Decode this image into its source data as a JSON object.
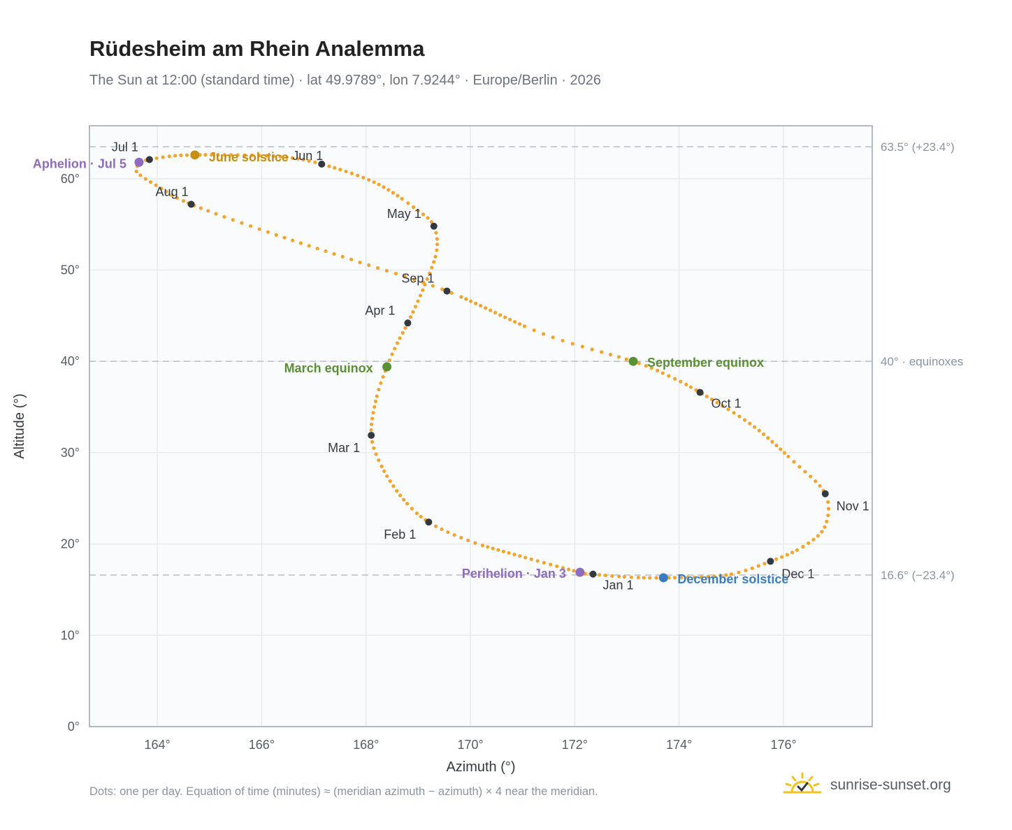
{
  "title": "Rüdesheim am Rhein Analemma",
  "subtitle": "The Sun at 12:00 (standard time) · lat 49.9789°, lon 7.9244° · Europe/Berlin · 2026",
  "footnote": "Dots: one per day. Equation of time (minutes) ≈ (meridian azimuth − azimuth) × 4 near the meridian.",
  "brand": {
    "name": "sunrise-sunset.org",
    "logo_icon": "sun-check-icon"
  },
  "colors": {
    "path": "#f2a52a",
    "month_dot": "#333940",
    "aphelion": "#8e6bbf",
    "solstice_june": "#c98d10",
    "equinox": "#5a8f32",
    "solstice_december": "#3a7dc2",
    "plot_bg": "#f9fbfd",
    "grid": "#e6ebf0",
    "reference": "#b9c3cf",
    "axis_frame": "#9aa4b1",
    "brand_sun": "#f2c21b"
  },
  "chart_data": {
    "type": "scatter",
    "xlabel": "Azimuth (°)",
    "ylabel": "Altitude (°)",
    "xlim": [
      162.7,
      177.7
    ],
    "ylim": [
      0,
      65.8
    ],
    "xticks": [
      {
        "value": 164,
        "label": "164°"
      },
      {
        "value": 166,
        "label": "166°"
      },
      {
        "value": 168,
        "label": "168°"
      },
      {
        "value": 170,
        "label": "170°"
      },
      {
        "value": 172,
        "label": "172°"
      },
      {
        "value": 174,
        "label": "174°"
      },
      {
        "value": 176,
        "label": "176°"
      }
    ],
    "yticks": [
      {
        "value": 0,
        "label": "0°"
      },
      {
        "value": 10,
        "label": "10°"
      },
      {
        "value": 20,
        "label": "20°"
      },
      {
        "value": 30,
        "label": "30°"
      },
      {
        "value": 40,
        "label": "40°"
      },
      {
        "value": 50,
        "label": "50°"
      },
      {
        "value": 60,
        "label": "60°"
      }
    ],
    "grid": true,
    "reference_lines": [
      {
        "y": 63.5,
        "label": "63.5° (+23.4°)"
      },
      {
        "y": 40.0,
        "label": "40° · equinoxes"
      },
      {
        "y": 16.6,
        "label": "16.6° (−23.4°)"
      }
    ],
    "series": [
      {
        "points": [
          [
            172.35,
            16.7
          ],
          [
            172.95,
            16.4
          ],
          [
            173.7,
            16.3
          ],
          [
            174.9,
            16.6
          ],
          [
            175.75,
            18.1
          ],
          [
            176.4,
            19.8
          ],
          [
            176.8,
            22.0
          ],
          [
            176.8,
            25.5
          ],
          [
            176.2,
            29.0
          ],
          [
            175.4,
            33.0
          ],
          [
            174.4,
            36.6
          ],
          [
            173.8,
            38.4
          ],
          [
            173.12,
            40.0
          ],
          [
            171.4,
            43.0
          ],
          [
            169.55,
            47.7
          ],
          [
            167.8,
            51.0
          ],
          [
            166.2,
            54.0
          ],
          [
            164.65,
            57.2
          ],
          [
            164.0,
            59.2
          ],
          [
            163.6,
            60.8
          ],
          [
            163.7,
            61.8
          ],
          [
            163.85,
            62.1
          ],
          [
            164.3,
            62.5
          ],
          [
            164.72,
            62.6
          ],
          [
            165.5,
            62.6
          ],
          [
            166.4,
            62.4
          ],
          [
            167.15,
            61.6
          ],
          [
            168.2,
            59.5
          ],
          [
            169.0,
            56.5
          ],
          [
            169.3,
            54.8
          ],
          [
            169.35,
            52.0
          ],
          [
            169.1,
            48.0
          ],
          [
            168.8,
            44.2
          ],
          [
            168.6,
            42.0
          ],
          [
            168.4,
            39.4
          ],
          [
            168.2,
            36.0
          ],
          [
            168.1,
            31.9
          ],
          [
            168.3,
            28.5
          ],
          [
            168.7,
            25.0
          ],
          [
            169.2,
            22.4
          ],
          [
            170.0,
            20.3
          ],
          [
            171.0,
            18.6
          ],
          [
            172.1,
            16.9
          ],
          [
            172.35,
            16.7
          ]
        ]
      }
    ],
    "month_markers": [
      {
        "label": "Jan 1",
        "x": 172.35,
        "y": 16.7
      },
      {
        "label": "Feb 1",
        "x": 169.2,
        "y": 22.4
      },
      {
        "label": "Mar 1",
        "x": 168.1,
        "y": 31.9
      },
      {
        "label": "Apr 1",
        "x": 168.8,
        "y": 44.2
      },
      {
        "label": "May 1",
        "x": 169.3,
        "y": 54.8
      },
      {
        "label": "Jun 1",
        "x": 167.15,
        "y": 61.6
      },
      {
        "label": "Jul 1",
        "x": 163.85,
        "y": 62.1
      },
      {
        "label": "Aug 1",
        "x": 164.65,
        "y": 57.2
      },
      {
        "label": "Sep 1",
        "x": 169.55,
        "y": 47.7
      },
      {
        "label": "Oct 1",
        "x": 174.4,
        "y": 36.6
      },
      {
        "label": "Nov 1",
        "x": 176.8,
        "y": 25.5
      },
      {
        "label": "Dec 1",
        "x": 175.75,
        "y": 18.1
      }
    ],
    "events": [
      {
        "label": "Aphelion · Jul 5",
        "x": 163.65,
        "y": 61.8,
        "color_key": "aphelion"
      },
      {
        "label": "June solstice",
        "x": 164.72,
        "y": 62.6,
        "color_key": "solstice_june"
      },
      {
        "label": "March equinox",
        "x": 168.4,
        "y": 39.4,
        "color_key": "equinox"
      },
      {
        "label": "September equinox",
        "x": 173.12,
        "y": 40.0,
        "color_key": "equinox"
      },
      {
        "label": "Perihelion · Jan 3",
        "x": 172.1,
        "y": 16.9,
        "color_key": "aphelion"
      },
      {
        "label": "December solstice",
        "x": 173.7,
        "y": 16.3,
        "color_key": "solstice_december"
      }
    ]
  }
}
